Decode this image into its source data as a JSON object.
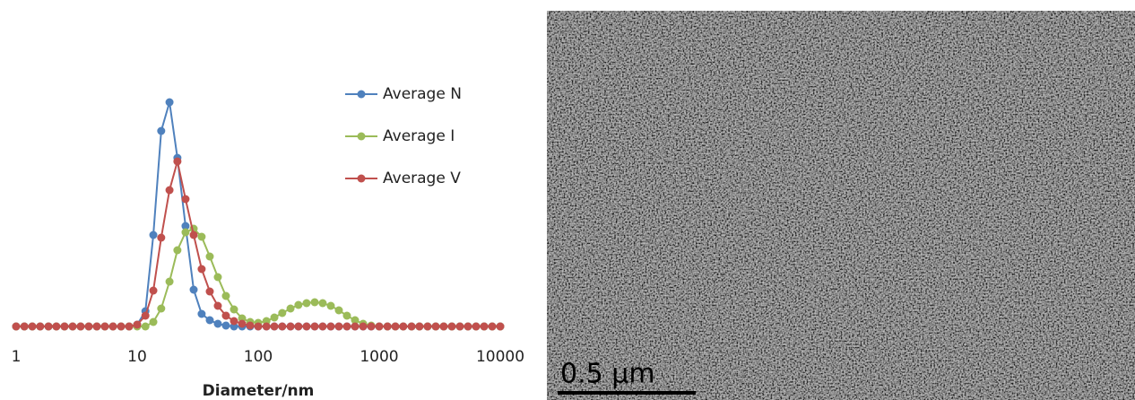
{
  "chart_data": {
    "type": "line",
    "x_label": "Diameter/nm",
    "log_x": true,
    "xlim": [
      1,
      10000
    ],
    "xticks": [
      1,
      10,
      100,
      1000,
      10000
    ],
    "ylim": [
      0,
      30
    ],
    "legend": "top-right",
    "x": [
      1,
      1.17,
      1.36,
      1.58,
      1.85,
      2.15,
      2.51,
      2.93,
      3.41,
      3.98,
      4.64,
      5.41,
      6.31,
      7.36,
      8.58,
      10,
      11.7,
      13.6,
      15.8,
      18.5,
      21.5,
      25.1,
      29.3,
      34.1,
      39.8,
      46.4,
      54.1,
      63.1,
      73.6,
      85.8,
      100,
      117,
      136,
      158,
      185,
      215,
      251,
      293,
      341,
      398,
      464,
      541,
      631,
      736,
      858,
      1000,
      1170,
      1360,
      1580,
      1850,
      2150,
      2510,
      2930,
      3410,
      3980,
      4640,
      5410,
      6310,
      7360,
      8580,
      10000
    ],
    "series": [
      {
        "name": "Average N",
        "color": "#4f81bd",
        "values": [
          0,
          0,
          0,
          0,
          0,
          0,
          0,
          0,
          0,
          0,
          0,
          0,
          0,
          0,
          0,
          0.2,
          1.7,
          10.2,
          21.8,
          25,
          18.8,
          11.2,
          4.1,
          1.4,
          0.7,
          0.3,
          0.1,
          0,
          0,
          0,
          0,
          0,
          0,
          0,
          0,
          0,
          0,
          0,
          0,
          0,
          0,
          0,
          0,
          0,
          0,
          0,
          0,
          0,
          0,
          0,
          0,
          0,
          0,
          0,
          0,
          0,
          0,
          0,
          0,
          0,
          0
        ]
      },
      {
        "name": "Average I",
        "color": "#9bbb59",
        "values": [
          0,
          0,
          0,
          0,
          0,
          0,
          0,
          0,
          0,
          0,
          0,
          0,
          0,
          0,
          0,
          0,
          0,
          0.5,
          2.0,
          5.0,
          8.5,
          10.5,
          10.9,
          10,
          7.8,
          5.5,
          3.4,
          1.9,
          0.9,
          0.5,
          0.4,
          0.6,
          1.0,
          1.5,
          2.0,
          2.4,
          2.6,
          2.7,
          2.6,
          2.3,
          1.8,
          1.2,
          0.7,
          0.3,
          0.1,
          0,
          0,
          0,
          0,
          0,
          0,
          0,
          0,
          0,
          0,
          0,
          0,
          0,
          0,
          0,
          0
        ]
      },
      {
        "name": "Average V",
        "color": "#c0504d",
        "values": [
          0,
          0,
          0,
          0,
          0,
          0,
          0,
          0,
          0,
          0,
          0,
          0,
          0,
          0,
          0,
          0.2,
          1.2,
          4,
          9.9,
          15.2,
          18.4,
          14.2,
          10.2,
          6.4,
          3.9,
          2.3,
          1.2,
          0.6,
          0.3,
          0.1,
          0,
          0,
          0,
          0,
          0,
          0,
          0,
          0,
          0,
          0,
          0,
          0,
          0,
          0,
          0,
          0,
          0,
          0,
          0,
          0,
          0,
          0,
          0,
          0,
          0,
          0,
          0,
          0,
          0,
          0,
          0
        ]
      }
    ]
  },
  "image": {
    "scale_bar_label": "0.5 µm"
  }
}
